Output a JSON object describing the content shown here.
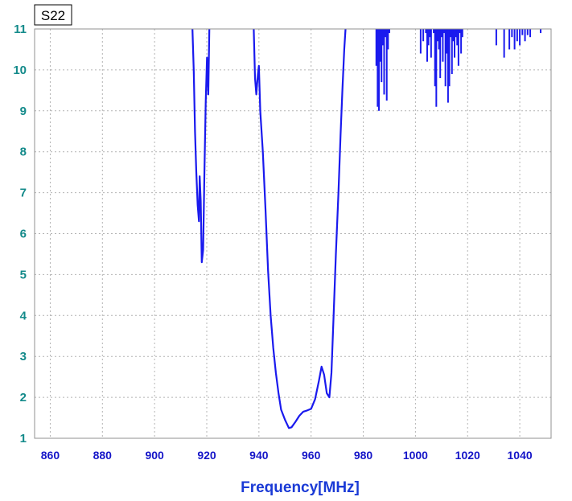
{
  "chart_data": {
    "type": "line",
    "title": "",
    "xlabel": "Frequency[MHz]",
    "ylabel": "",
    "xlim": [
      854,
      1052
    ],
    "ylim": [
      1,
      11
    ],
    "grid": true,
    "x_ticks": [
      860,
      880,
      900,
      920,
      940,
      960,
      980,
      1000,
      1020,
      1040
    ],
    "y_ticks": [
      1,
      2,
      3,
      4,
      5,
      6,
      7,
      8,
      9,
      10,
      11
    ],
    "series": [
      {
        "name": "S22",
        "color": "#1a1aee",
        "segments": [
          [
            [
              914.5,
              11
            ],
            [
              915,
              10
            ],
            [
              915.5,
              8.5
            ],
            [
              916,
              7.5
            ],
            [
              916.5,
              6.7
            ],
            [
              917,
              6.3
            ],
            [
              917.3,
              7.4
            ],
            [
              917.7,
              6.8
            ],
            [
              918.1,
              5.3
            ],
            [
              918.6,
              5.6
            ],
            [
              919.1,
              7.5
            ],
            [
              919.6,
              9.2
            ],
            [
              920.1,
              10.3
            ],
            [
              920.6,
              9.4
            ],
            [
              921,
              11
            ]
          ],
          [
            [
              938,
              11
            ],
            [
              938.5,
              9.8
            ],
            [
              939,
              9.4
            ],
            [
              939.6,
              9.9
            ],
            [
              940,
              10.1
            ],
            [
              940.5,
              9
            ],
            [
              941.5,
              8
            ],
            [
              942.5,
              6.6
            ],
            [
              943.5,
              5.1
            ],
            [
              944.5,
              4
            ],
            [
              945.5,
              3.2
            ],
            [
              946.5,
              2.6
            ],
            [
              947.5,
              2.1
            ],
            [
              948.5,
              1.7
            ],
            [
              950,
              1.45
            ],
            [
              951.5,
              1.25
            ],
            [
              952.5,
              1.27
            ],
            [
              954,
              1.4
            ],
            [
              955.5,
              1.55
            ],
            [
              957,
              1.65
            ],
            [
              958.5,
              1.68
            ],
            [
              960,
              1.72
            ],
            [
              961.5,
              1.95
            ],
            [
              963,
              2.4
            ],
            [
              964,
              2.75
            ],
            [
              965,
              2.55
            ],
            [
              966,
              2.1
            ],
            [
              967,
              2
            ],
            [
              967.8,
              2.6
            ],
            [
              968.5,
              3.8
            ],
            [
              969.5,
              5.5
            ],
            [
              970.5,
              7
            ],
            [
              971.3,
              8.4
            ],
            [
              972,
              9.5
            ],
            [
              972.7,
              10.5
            ],
            [
              973.2,
              11
            ]
          ]
        ],
        "spikes": [
          [
            985,
            10.1
          ],
          [
            985.5,
            9.1
          ],
          [
            986,
            9
          ],
          [
            986.5,
            10.2
          ],
          [
            987,
            9.7
          ],
          [
            987.5,
            10.6
          ],
          [
            988,
            9.4
          ],
          [
            988.5,
            10.8
          ],
          [
            989,
            9.25
          ],
          [
            989.5,
            10.5
          ],
          [
            990,
            10.9
          ],
          [
            1002,
            10.4
          ],
          [
            1003,
            10.7
          ],
          [
            1004,
            10.9
          ],
          [
            1004.5,
            10.2
          ],
          [
            1005,
            10.6
          ],
          [
            1005.5,
            10.8
          ],
          [
            1006,
            10.3
          ],
          [
            1007,
            10.9
          ],
          [
            1007.5,
            9.6
          ],
          [
            1008,
            9.1
          ],
          [
            1008.5,
            10.7
          ],
          [
            1009,
            10.5
          ],
          [
            1009.5,
            9.8
          ],
          [
            1010,
            10.8
          ],
          [
            1010.5,
            10.2
          ],
          [
            1011,
            10.9
          ],
          [
            1011.5,
            9.6
          ],
          [
            1012,
            10.4
          ],
          [
            1012.5,
            9.2
          ],
          [
            1013,
            9.6
          ],
          [
            1013.5,
            10.8
          ],
          [
            1014,
            9.9
          ],
          [
            1014.5,
            10.7
          ],
          [
            1015,
            10.3
          ],
          [
            1015.5,
            10.8
          ],
          [
            1016,
            10.6
          ],
          [
            1016.5,
            10.1
          ],
          [
            1017,
            10.9
          ],
          [
            1017.5,
            10.4
          ],
          [
            1018,
            10.8
          ],
          [
            1031,
            10.6
          ],
          [
            1034,
            10.3
          ],
          [
            1036,
            10.5
          ],
          [
            1037,
            10.8
          ],
          [
            1038,
            10.5
          ],
          [
            1039,
            10.7
          ],
          [
            1040,
            10.6
          ],
          [
            1041,
            10.85
          ],
          [
            1042,
            10.7
          ],
          [
            1043,
            10.85
          ],
          [
            1044,
            10.8
          ],
          [
            1048,
            10.9
          ]
        ]
      }
    ]
  }
}
